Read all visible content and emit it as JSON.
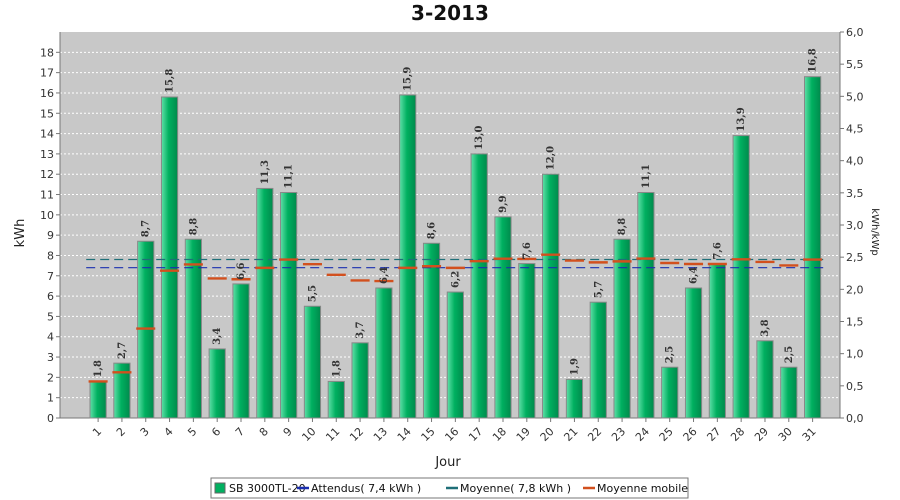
{
  "chart_data": {
    "type": "bar",
    "title": "3-2013",
    "xlabel": "Jour",
    "ylabel": "kWh",
    "y2label": "kWh/kWp",
    "ylim": [
      0,
      19
    ],
    "y2lim": [
      0,
      6.0
    ],
    "categories": [
      "1",
      "2",
      "3",
      "4",
      "5",
      "6",
      "7",
      "8",
      "9",
      "10",
      "11",
      "12",
      "13",
      "14",
      "15",
      "16",
      "17",
      "18",
      "19",
      "20",
      "21",
      "22",
      "23",
      "24",
      "25",
      "26",
      "27",
      "28",
      "29",
      "30",
      "31"
    ],
    "series": [
      {
        "name": "SB 3000TL-20",
        "type": "bar",
        "color": "#00b060",
        "values": [
          1.8,
          2.7,
          8.7,
          15.8,
          8.8,
          3.4,
          6.6,
          11.3,
          11.1,
          5.5,
          1.8,
          3.7,
          6.4,
          15.9,
          8.6,
          6.2,
          13.0,
          9.9,
          7.6,
          12.0,
          1.9,
          5.7,
          8.8,
          11.1,
          2.5,
          6.4,
          7.6,
          13.9,
          3.8,
          2.5,
          16.8
        ],
        "labels": [
          "1,8",
          "2,7",
          "8,7",
          "15,8",
          "8,8",
          "3,4",
          "6,6",
          "11,3",
          "11,1",
          "5,5",
          "1,8",
          "3,7",
          "6,4",
          "15,9",
          "8,6",
          "6,2",
          "13,0",
          "9,9",
          "7,6",
          "12,0",
          "1,9",
          "5,7",
          "8,8",
          "11,1",
          "2,5",
          "6,4",
          "7,6",
          "13,9",
          "3,8",
          "2,5",
          "16,8"
        ]
      },
      {
        "name": "Attendus( 7,4 kWh )",
        "type": "line",
        "color": "#1a2fb0",
        "value": 7.4
      },
      {
        "name": "Moyenne( 7,8 kWh )",
        "type": "line",
        "color": "#1f6f78",
        "value": 7.8
      },
      {
        "name": "Moyenne mobile",
        "type": "step",
        "color": "#d2501e",
        "values": [
          1.8,
          2.25,
          4.4,
          7.25,
          7.56,
          6.87,
          6.83,
          7.39,
          7.8,
          7.57,
          7.05,
          6.77,
          6.74,
          7.39,
          7.47,
          7.39,
          7.72,
          7.84,
          7.83,
          8.04,
          7.75,
          7.66,
          7.71,
          7.85,
          7.63,
          7.58,
          7.58,
          7.81,
          7.68,
          7.51,
          7.8
        ]
      }
    ],
    "yticks": [
      "0",
      "1",
      "2",
      "3",
      "4",
      "5",
      "6",
      "7",
      "8",
      "9",
      "10",
      "11",
      "12",
      "13",
      "14",
      "15",
      "16",
      "17",
      "18"
    ],
    "y2ticks": [
      "0,0",
      "0,5",
      "1,0",
      "1,5",
      "2,0",
      "2,5",
      "3,0",
      "3,5",
      "4,0",
      "4,5",
      "5,0",
      "5,5",
      "6,0"
    ],
    "grid": true,
    "legend_position": "bottom-center",
    "colors": {
      "plot_bg": "#c8c8c8",
      "grid": "#ffffff",
      "bar_edge": "#888888"
    }
  }
}
